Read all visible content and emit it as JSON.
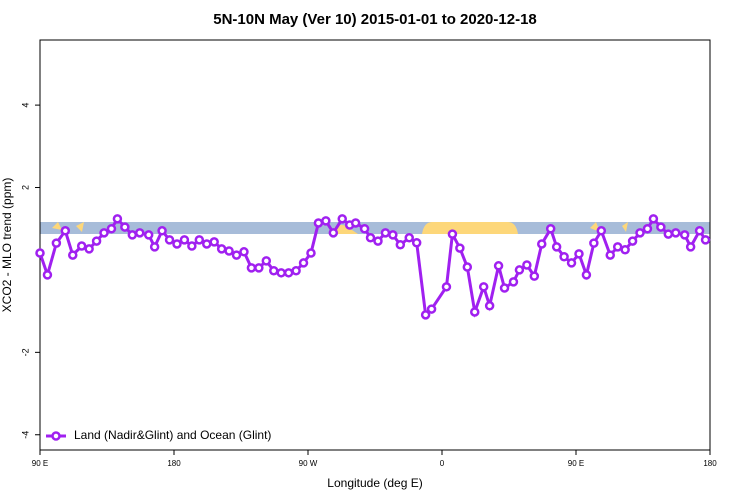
{
  "chart_data": {
    "type": "line",
    "title": "5N-10N May (Ver 10)   2015-01-01 to 2020-12-18",
    "x_label": "Longitude (deg E)",
    "y_label": "XCO2 - MLO trend (ppm)",
    "xlim": [
      90,
      540
    ],
    "ylim": [
      -4.37,
      5.58
    ],
    "xticks": [
      {
        "value": 90,
        "label": "90 E"
      },
      {
        "value": 180,
        "label": "180"
      },
      {
        "value": 270,
        "label": "90 W"
      },
      {
        "value": 360,
        "label": "0"
      },
      {
        "value": 450,
        "label": "90 E"
      },
      {
        "value": 540,
        "label": "180"
      }
    ],
    "yticks": [
      -4,
      -2,
      2,
      4
    ],
    "legend_position": "bottomleft",
    "x": [
      90,
      95,
      101,
      107,
      112,
      118,
      123,
      128,
      133,
      138,
      142,
      147,
      152,
      157,
      163,
      167,
      172,
      177,
      182,
      187,
      192,
      197,
      202,
      207,
      212,
      217,
      222,
      227,
      232,
      237,
      242,
      247,
      252,
      257,
      262,
      267,
      272,
      277,
      282,
      287,
      293,
      298,
      302,
      308,
      312,
      317,
      322,
      327,
      332,
      338,
      343,
      349,
      353,
      363,
      367,
      372,
      377,
      382,
      388,
      392,
      398,
      402,
      408,
      412,
      417,
      422,
      427,
      433,
      437,
      442,
      447,
      452,
      457,
      462,
      467,
      473,
      478,
      483,
      488,
      493,
      498,
      502,
      507,
      512,
      517,
      523,
      527,
      533,
      537
    ],
    "series": [
      {
        "name": "Land (Nadir&Glint) and Ocean (Glint)",
        "color": "#a020f0",
        "values": [
          0.41,
          -0.12,
          0.65,
          0.95,
          0.36,
          0.58,
          0.51,
          0.7,
          0.9,
          1.0,
          1.24,
          1.04,
          0.85,
          0.9,
          0.85,
          0.56,
          0.95,
          0.73,
          0.63,
          0.73,
          0.58,
          0.73,
          0.63,
          0.68,
          0.51,
          0.46,
          0.36,
          0.44,
          0.05,
          0.05,
          0.22,
          -0.02,
          -0.07,
          -0.07,
          -0.02,
          0.17,
          0.41,
          1.14,
          1.19,
          0.9,
          1.24,
          1.09,
          1.14,
          1.0,
          0.78,
          0.7,
          0.9,
          0.85,
          0.61,
          0.78,
          0.66,
          -1.09,
          -0.95,
          -0.41,
          0.87,
          0.53,
          0.07,
          -1.02,
          -0.41,
          -0.87,
          0.1,
          -0.44,
          -0.29,
          0.0,
          0.12,
          -0.15,
          0.63,
          1.0,
          0.56,
          0.32,
          0.17,
          0.39,
          -0.12,
          0.65,
          0.95,
          0.36,
          0.56,
          0.49,
          0.7,
          0.9,
          1.0,
          1.24,
          1.04,
          0.87,
          0.9,
          0.85,
          0.56,
          0.95,
          0.73
        ]
      }
    ]
  }
}
